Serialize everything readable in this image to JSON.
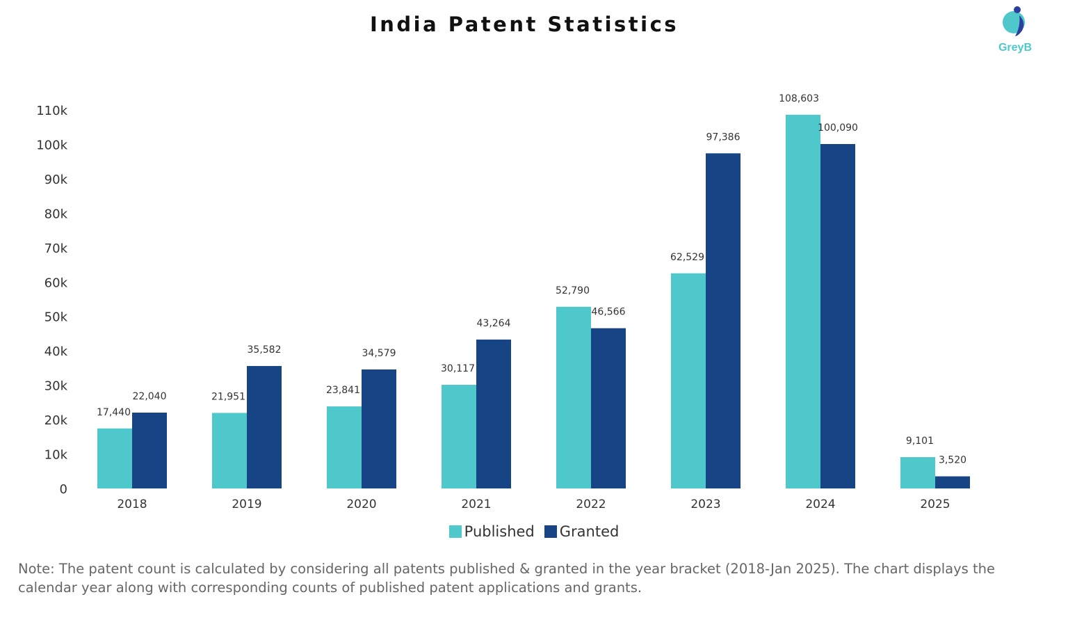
{
  "brand": {
    "logo_text": "GreyB",
    "colors": {
      "teal": "#4FC8CC",
      "navy": "#2B3F9E"
    }
  },
  "chart_data": {
    "type": "bar",
    "title": "India Patent Statistics",
    "categories": [
      "2018",
      "2019",
      "2020",
      "2021",
      "2022",
      "2023",
      "2024",
      "2025"
    ],
    "series": [
      {
        "name": "Published",
        "color": "#4FC8CC",
        "values": [
          17440,
          21951,
          23841,
          30117,
          52790,
          62529,
          108603,
          9101
        ],
        "labels": [
          "17,440",
          "21,951",
          "23,841",
          "30,117",
          "52,790",
          "62,529",
          "108,603",
          "9,101"
        ]
      },
      {
        "name": "Granted",
        "color": "#174485",
        "values": [
          22040,
          35582,
          34579,
          43264,
          46566,
          97386,
          100090,
          3520
        ],
        "labels": [
          "22,040",
          "35,582",
          "34,579",
          "43,264",
          "46,566",
          "97,386",
          "100,090",
          "3,520"
        ]
      }
    ],
    "ylim": [
      0,
      110000
    ],
    "yticks": [
      0,
      10000,
      20000,
      30000,
      40000,
      50000,
      60000,
      70000,
      80000,
      90000,
      100000,
      110000
    ],
    "ytick_labels": [
      "0",
      "10k",
      "20k",
      "30k",
      "40k",
      "50k",
      "60k",
      "70k",
      "80k",
      "90k",
      "100k",
      "110k"
    ],
    "grid": false,
    "legend": "bottom-center",
    "note": "Note: The patent count is calculated by considering all patents published & granted in the year bracket (2018-Jan 2025). The chart displays the calendar year along with corresponding counts of published patent applications and grants."
  }
}
